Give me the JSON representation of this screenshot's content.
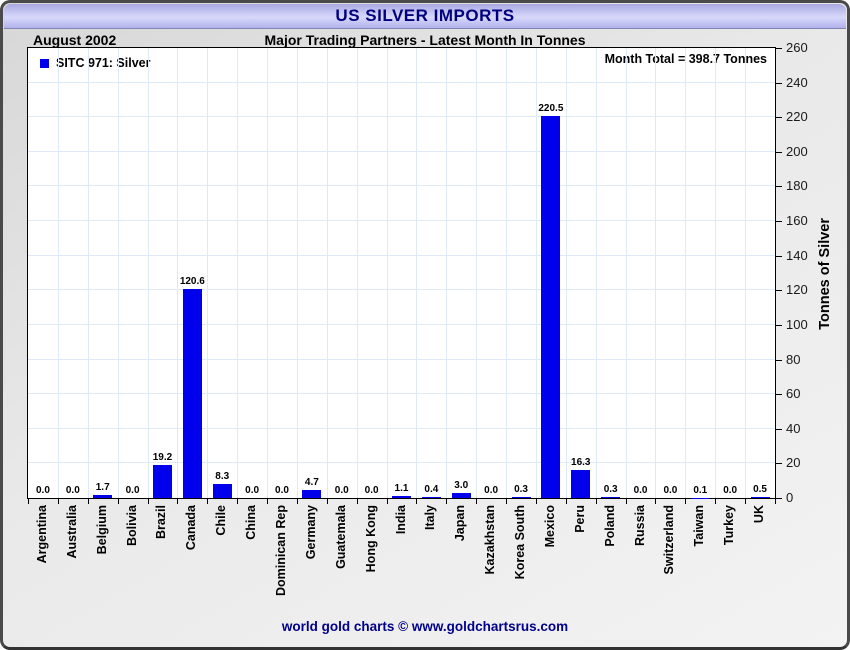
{
  "window": {
    "title": "US SILVER IMPORTS"
  },
  "header": {
    "period": "August 2002",
    "subtitle": "Major Trading Partners - Latest Month In Tonnes"
  },
  "legend": {
    "label": "SITC 971: Silver"
  },
  "annotation": {
    "month_total": "Month Total = 398.7 Tonnes"
  },
  "footer": {
    "credit": "world gold charts © www.goldchartsrus.com"
  },
  "colors": {
    "bar": "#0000ed",
    "title_navy": "#00007d",
    "footer_navy": "#00008b",
    "gridline": "#dfeaf8",
    "titlebar_lavender": "#c4c4f4",
    "frame_background": "#e9e9e9"
  },
  "chart_data": {
    "type": "bar",
    "title": "US SILVER IMPORTS",
    "subtitle": "Major Trading Partners - Latest Month In Tonnes",
    "categories": [
      "Argentina",
      "Australia",
      "Belgium",
      "Bolivia",
      "Brazil",
      "Canada",
      "Chile",
      "China",
      "Dominican Rep",
      "Germany",
      "Guatemala",
      "Hong Kong",
      "India",
      "Italy",
      "Japan",
      "Kazakhstan",
      "Korea South",
      "Mexico",
      "Peru",
      "Poland",
      "Russia",
      "Switzerland",
      "Taiwan",
      "Turkey",
      "UK"
    ],
    "values": [
      0.0,
      0.0,
      1.7,
      0.0,
      19.2,
      120.6,
      8.3,
      0.0,
      0.0,
      4.7,
      0.0,
      0.0,
      1.1,
      0.4,
      3.0,
      0.0,
      0.3,
      220.5,
      16.3,
      0.3,
      0.0,
      0.0,
      0.1,
      0.0,
      0.5
    ],
    "bar_labels": [
      "0.0",
      "0.0",
      "1.7",
      "0.0",
      "19.2",
      "120.6",
      "8.3",
      "0.0",
      "0.0",
      "4.7",
      "0.0",
      "0.0",
      "1.1",
      "0.4",
      "3.0",
      "0.0",
      "0.3",
      "220.5",
      "16.3",
      "0.3",
      "0.0",
      "0.0",
      "0.1",
      "0.0",
      "0.5"
    ],
    "series_name": "SITC 971: Silver",
    "xlabel": "",
    "ylabel": "Tonnes of Silver",
    "ylim": [
      0,
      260
    ],
    "ytick_step": 20,
    "grid": true,
    "legend_position": "top-left",
    "month_total": 398.7
  }
}
